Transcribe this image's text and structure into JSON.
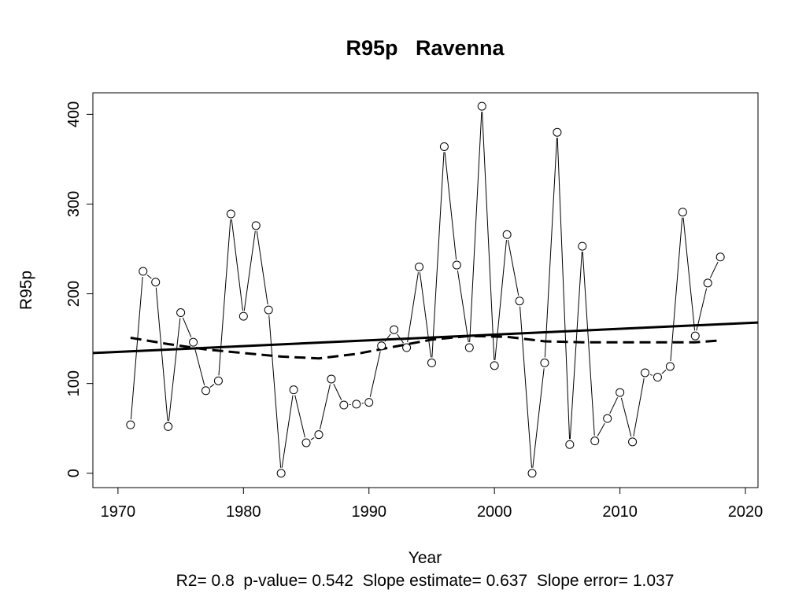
{
  "chart_data": {
    "type": "line",
    "title": "R95p   Ravenna",
    "xlabel": "Year",
    "ylabel": "R95p",
    "footer": "R2= 0.8  p-value= 0.542  Slope estimate= 0.637  Slope error= 1.037",
    "xlim": [
      1968,
      2021
    ],
    "ylim": [
      -16,
      424
    ],
    "x_ticks": [
      1970,
      1980,
      1990,
      2000,
      2010,
      2020
    ],
    "y_ticks": [
      0,
      100,
      200,
      300,
      400
    ],
    "grid": false,
    "x": [
      1971,
      1972,
      1973,
      1974,
      1975,
      1976,
      1977,
      1978,
      1979,
      1980,
      1981,
      1982,
      1983,
      1984,
      1985,
      1986,
      1987,
      1988,
      1989,
      1990,
      1991,
      1992,
      1993,
      1994,
      1995,
      1996,
      1997,
      1998,
      1999,
      2000,
      2001,
      2002,
      2003,
      2004,
      2005,
      2006,
      2007,
      2008,
      2009,
      2010,
      2011,
      2012,
      2013,
      2014,
      2015,
      2016,
      2017,
      2018
    ],
    "series": [
      {
        "style": "line-with-open-circles",
        "values": [
          54,
          225,
          213,
          52,
          179,
          146,
          92,
          103,
          289,
          175,
          276,
          182,
          0,
          93,
          34,
          43,
          105,
          76,
          77,
          79,
          142,
          160,
          140,
          230,
          123,
          364,
          232,
          140,
          409,
          120,
          266,
          192,
          0,
          123,
          380,
          32,
          253,
          36,
          61,
          90,
          35,
          112,
          107,
          119,
          291,
          153,
          212,
          241
        ]
      },
      {
        "style": "linear-trend",
        "line": "solid",
        "points": [
          [
            1968,
            134
          ],
          [
            2021,
            168
          ]
        ]
      },
      {
        "style": "smoothed-trend",
        "line": "dashed",
        "x": [
          1971,
          1974,
          1977,
          1980,
          1983,
          1986,
          1989,
          1992,
          1995,
          1998,
          2001,
          2004,
          2007,
          2010,
          2013,
          2016,
          2018
        ],
        "values": [
          151,
          144,
          138,
          134,
          130,
          128,
          133,
          141,
          149,
          153,
          152,
          147,
          146,
          146,
          146,
          146,
          148
        ]
      }
    ]
  }
}
